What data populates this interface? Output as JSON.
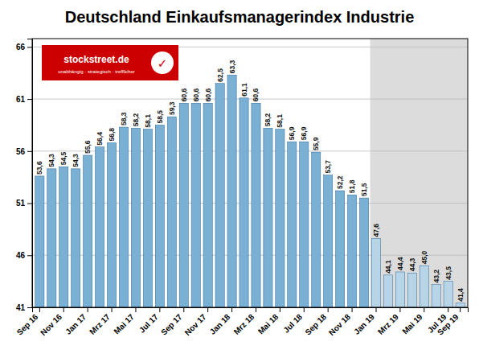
{
  "chart_data": {
    "type": "bar",
    "title": "Deutschland Einkaufsmanagerindex Industrie",
    "categories": [
      "Sep 16",
      null,
      "Nov 16",
      null,
      "Jan 17",
      null,
      "Mrz 17",
      null,
      "Mai 17",
      null,
      "Jul 17",
      null,
      "Sep 17",
      null,
      "Nov 17",
      null,
      "Jan 18",
      null,
      "Mrz 18",
      null,
      "Mai 18",
      null,
      "Jul 18",
      null,
      "Sep 18",
      null,
      "Nov 18",
      null,
      "Jan 19",
      null,
      "Mrz 19",
      null,
      "Mai 19",
      null,
      "Jul 19",
      "Sep 19"
    ],
    "values": [
      53.6,
      54.3,
      54.5,
      54.3,
      55.6,
      56.4,
      56.8,
      58.3,
      58.2,
      58.1,
      58.5,
      59.3,
      60.6,
      60.6,
      60.6,
      62.5,
      63.3,
      61.1,
      60.6,
      58.2,
      58.1,
      56.9,
      56.9,
      55.9,
      53.7,
      52.2,
      51.8,
      51.5,
      47.6,
      44.1,
      44.4,
      44.3,
      45.0,
      43.2,
      43.5,
      41.4
    ],
    "value_labels": [
      "53,6",
      "54,3",
      "54,5",
      "54,3",
      "55,6",
      "56,4",
      "56,8",
      "58,3",
      "58,2",
      "58,1",
      "58,5",
      "59,3",
      "60,6",
      "60,6",
      "60,6",
      "62,5",
      "63,3",
      "61,1",
      "60,6",
      "58,2",
      "58,1",
      "56,9",
      "56,9",
      "55,9",
      "53,7",
      "52,2",
      "51,8",
      "51,5",
      "47,6",
      "44,1",
      "44,4",
      "44,3",
      "45,0",
      "43,2",
      "43,5",
      "41,4"
    ],
    "colors": [
      "#7ab0d4",
      "#7ab0d4",
      "#7ab0d4",
      "#7ab0d4",
      "#7ab0d4",
      "#7ab0d4",
      "#7ab0d4",
      "#7ab0d4",
      "#7ab0d4",
      "#7ab0d4",
      "#7ab0d4",
      "#7ab0d4",
      "#7ab0d4",
      "#7ab0d4",
      "#7ab0d4",
      "#7ab0d4",
      "#7ab0d4",
      "#7ab0d4",
      "#7ab0d4",
      "#7ab0d4",
      "#7ab0d4",
      "#7ab0d4",
      "#7ab0d4",
      "#7ab0d4",
      "#7ab0d4",
      "#7ab0d4",
      "#7ab0d4",
      "#7ab0d4",
      "#b8d5e8",
      "#b8d5e8",
      "#b8d5e8",
      "#b8d5e8",
      "#b8d5e8",
      "#b8d5e8",
      "#b8d5e8",
      "#b8d5e8"
    ],
    "shade_start": 28,
    "ylim": [
      41,
      66.8
    ],
    "yticks": [
      41,
      46,
      51,
      56,
      61,
      66
    ],
    "grid": true,
    "data_labels": true,
    "annotations": [
      "stockstreet.de",
      "unabhängig · strategisch · trefflicher",
      "✓"
    ]
  }
}
